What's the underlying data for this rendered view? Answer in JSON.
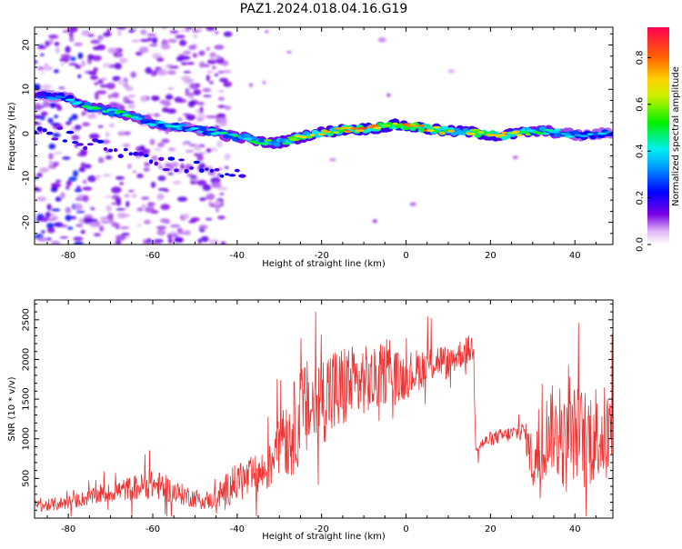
{
  "figure": {
    "title": "PAZ1.2024.018.04.16.G19"
  },
  "chart_data": [
    {
      "type": "heatmap",
      "xlabel": "Height of straight line (km)",
      "ylabel": "Frequency (Hz)",
      "xlim": [
        -88,
        49
      ],
      "ylim": [
        -25,
        24
      ],
      "x_ticks": [
        -80,
        -60,
        -40,
        -20,
        0,
        20,
        40
      ],
      "y_ticks": [
        -20,
        -10,
        0,
        10,
        20
      ],
      "colorbar": {
        "label": "Normalized spectral amplitude",
        "range": [
          0,
          0.93
        ],
        "ticks": [
          0.0,
          0.2,
          0.4,
          0.6,
          0.8
        ]
      },
      "ridge": {
        "x": [
          -88,
          -80,
          -75,
          -70,
          -66,
          -62,
          -58,
          -54,
          -50,
          -46,
          -42,
          -38,
          -34,
          -30,
          -26,
          -22,
          -18,
          -14,
          -10,
          -6,
          -2,
          2,
          6,
          10,
          14,
          18,
          22,
          26,
          30,
          34,
          38,
          42,
          46,
          49
        ],
        "freq": [
          9,
          8,
          6,
          5,
          4,
          3,
          2,
          1.5,
          1,
          0.5,
          -0.5,
          -1,
          -2,
          -2,
          -1,
          0,
          0.5,
          1,
          1,
          1.5,
          2,
          1.5,
          1,
          0.5,
          0.5,
          0,
          -0.5,
          0,
          0.5,
          0.5,
          0,
          -0.5,
          0,
          0
        ],
        "amplitude": [
          0.3,
          0.45,
          0.6,
          0.55,
          0.6,
          0.5,
          0.55,
          0.45,
          0.45,
          0.5,
          0.55,
          0.6,
          0.65,
          0.7,
          0.72,
          0.75,
          0.8,
          0.9,
          0.92,
          0.85,
          0.93,
          0.9,
          0.85,
          0.8,
          0.78,
          0.8,
          0.85,
          0.8,
          0.6,
          0.6,
          0.5,
          0.45,
          0.45,
          0.4
        ]
      }
    },
    {
      "type": "line",
      "xlabel": "Height of straight line (km)",
      "ylabel": "SNR (10 * v/v)",
      "xlim": [
        -88,
        49
      ],
      "ylim": [
        0,
        2750
      ],
      "x_ticks": [
        -80,
        -60,
        -40,
        -20,
        0,
        20,
        40
      ],
      "y_ticks": [
        500,
        1000,
        1500,
        2000,
        2500
      ],
      "color": "#ee3333",
      "series": [
        {
          "x": [
            -88,
            -85,
            -80,
            -75,
            -70,
            -65,
            -60,
            -58,
            -55,
            -50,
            -46,
            -44,
            -42,
            -40,
            -38,
            -36,
            -34,
            -32,
            -30,
            -28,
            -26,
            -24,
            -22,
            -20,
            -18,
            -16,
            -14,
            -12,
            -10,
            -8,
            -6,
            -4,
            -2,
            0,
            2,
            4,
            6,
            8,
            10,
            12,
            14,
            16,
            16.5,
            17,
            20,
            24,
            28,
            30,
            32,
            34,
            36,
            38,
            40,
            42,
            44,
            46,
            48,
            49
          ],
          "values": [
            150,
            160,
            200,
            260,
            320,
            380,
            420,
            400,
            330,
            250,
            220,
            300,
            380,
            450,
            480,
            520,
            580,
            650,
            1300,
            1000,
            1200,
            1350,
            1400,
            1500,
            1600,
            1550,
            1700,
            1650,
            1750,
            1700,
            1800,
            1850,
            1750,
            1800,
            1850,
            1900,
            1950,
            2000,
            1950,
            2050,
            2100,
            2150,
            900,
            900,
            1000,
            1050,
            1100,
            700,
            800,
            1200,
            1000,
            900,
            1100,
            1000,
            1050,
            1100,
            1000,
            900
          ],
          "noise_amp": [
            80,
            80,
            90,
            100,
            120,
            160,
            180,
            180,
            150,
            120,
            110,
            180,
            220,
            250,
            260,
            270,
            280,
            300,
            500,
            550,
            600,
            650,
            600,
            550,
            650,
            600,
            550,
            500,
            450,
            420,
            400,
            380,
            350,
            300,
            280,
            260,
            240,
            220,
            200,
            200,
            180,
            200,
            80,
            80,
            90,
            100,
            120,
            400,
            450,
            550,
            550,
            600,
            600,
            650,
            650,
            650,
            600,
            600
          ]
        }
      ]
    }
  ]
}
